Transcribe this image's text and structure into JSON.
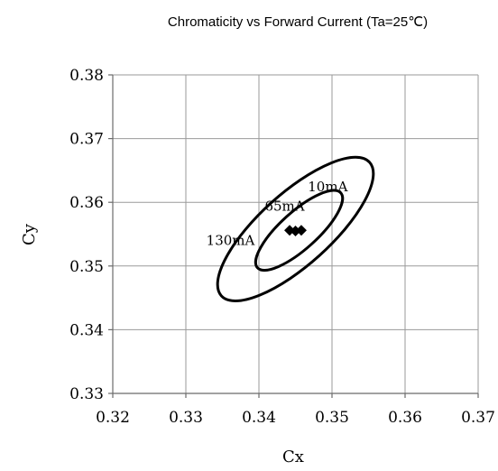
{
  "chart_data": {
    "type": "scatter",
    "title": "Chromaticity vs Forward Current (Ta=25℃)",
    "xlabel": "Cx",
    "ylabel": "Cy",
    "xlim": [
      0.32,
      0.37
    ],
    "ylim": [
      0.33,
      0.38
    ],
    "xticks": [
      "0.32",
      "0.33",
      "0.34",
      "0.35",
      "0.36",
      "0.37"
    ],
    "yticks": [
      "0.33",
      "0.34",
      "0.35",
      "0.36",
      "0.37",
      "0.38"
    ],
    "grid": true,
    "points": [
      {
        "x": 0.3442,
        "y": 0.3556
      },
      {
        "x": 0.345,
        "y": 0.3555
      },
      {
        "x": 0.3458,
        "y": 0.3556
      }
    ],
    "rings": [
      {
        "cx": 0.3455,
        "cy": 0.3556,
        "rx": 0.0073,
        "ry": 0.0053
      },
      {
        "cx": 0.345,
        "cy": 0.3558,
        "rx": 0.013,
        "ry": 0.0102
      }
    ],
    "annotations": [
      {
        "text": "10mA",
        "x": 0.3467,
        "y": 0.3617
      },
      {
        "text": "65mA",
        "x": 0.3408,
        "y": 0.3587
      },
      {
        "text": "130mA",
        "x": 0.3328,
        "y": 0.3533
      }
    ],
    "colors": {
      "marker": "#000000",
      "ring": "#000000",
      "grid": "#9a9a9a"
    }
  }
}
